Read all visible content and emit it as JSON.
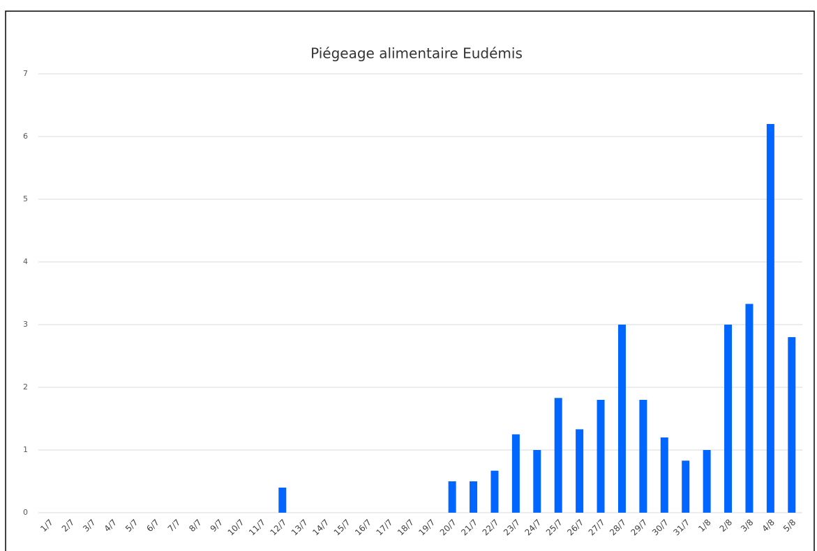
{
  "chart_data": {
    "type": "bar",
    "title": "Piégeage alimentaire Eudémis",
    "categories": [
      "1/7",
      "2/7",
      "3/7",
      "4/7",
      "5/7",
      "6/7",
      "7/7",
      "8/7",
      "9/7",
      "10/7",
      "11/7",
      "12/7",
      "13/7",
      "14/7",
      "15/7",
      "16/7",
      "17/7",
      "18/7",
      "19/7",
      "20/7",
      "21/7",
      "22/7",
      "23/7",
      "24/7",
      "25/7",
      "26/7",
      "27/7",
      "28/7",
      "29/7",
      "30/7",
      "31/7",
      "1/8",
      "2/8",
      "3/8",
      "4/8",
      "5/8"
    ],
    "values": [
      0,
      0,
      0,
      0,
      0,
      0,
      0,
      0,
      0,
      0,
      0,
      0.4,
      0,
      0,
      0,
      0,
      0,
      0,
      0,
      0.5,
      0.5,
      0.67,
      1.25,
      1,
      1.83,
      1.33,
      1.8,
      3,
      1.8,
      1.2,
      0.83,
      1,
      3,
      3.33,
      6.2,
      2.8
    ],
    "color": "#0066ff",
    "ylim": [
      0,
      7
    ],
    "yticks": [
      0,
      1,
      2,
      3,
      4,
      5,
      6,
      7
    ],
    "grid": true
  }
}
